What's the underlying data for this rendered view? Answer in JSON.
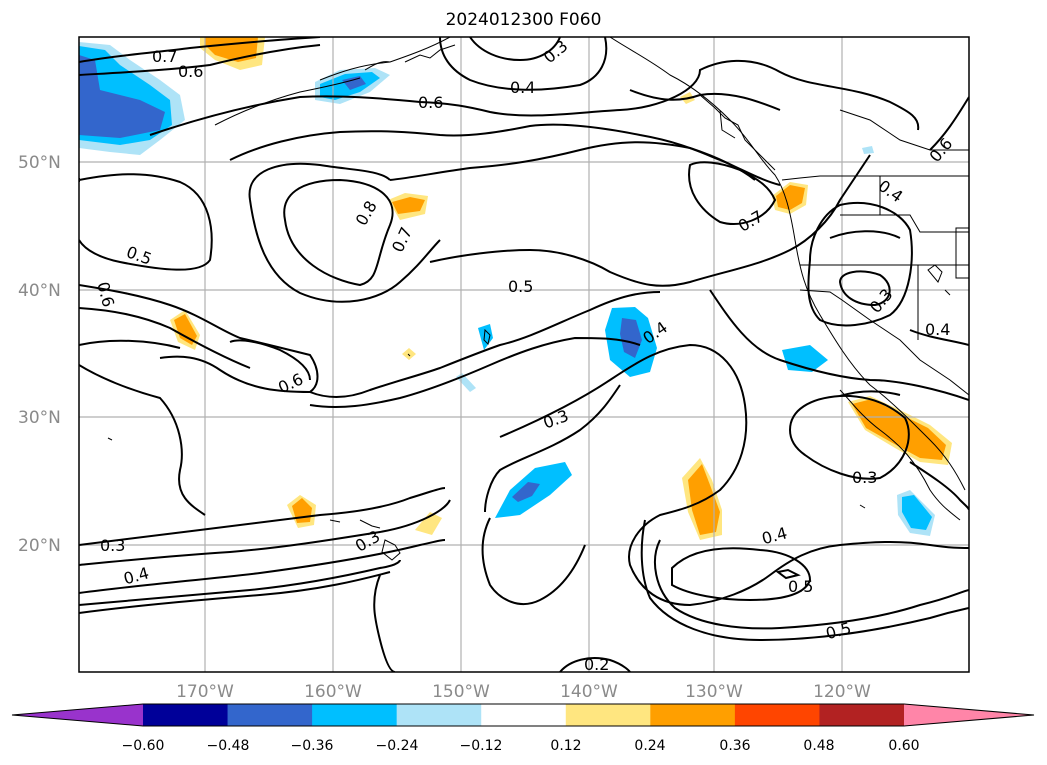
{
  "title": "2024012300 F060",
  "lat_labels": [
    "50°N",
    "40°N",
    "30°N",
    "20°N"
  ],
  "lon_labels": [
    "170°W",
    "160°W",
    "150°W",
    "140°W",
    "130°W",
    "120°W"
  ],
  "contour_labels": [
    "0.7",
    "0.6",
    "0.3",
    "0.4",
    "0.6",
    "0.6",
    "0.8",
    "0.7",
    "0.5",
    "0.6",
    "0.5",
    "0.7",
    "0.4",
    "0.4",
    "0.3",
    "0.6",
    "0.3",
    "0.4",
    "0.3",
    "0.5",
    "0.3",
    "0.4",
    "0.3",
    "0.4",
    "0.5",
    "0.2",
    "0.2"
  ],
  "colorbar": {
    "colors": [
      "#9933cc",
      "#000099",
      "#3366cc",
      "#00bfff",
      "#aee3f7",
      "#ffffff",
      "#ffe680",
      "#ff9f00",
      "#ff4500",
      "#b22222",
      "#ff85a8"
    ],
    "tick_labels": [
      "−0.60",
      "−0.48",
      "−0.36",
      "−0.24",
      "−0.12",
      "0.12",
      "0.24",
      "0.36",
      "0.48",
      "0.60"
    ]
  }
}
